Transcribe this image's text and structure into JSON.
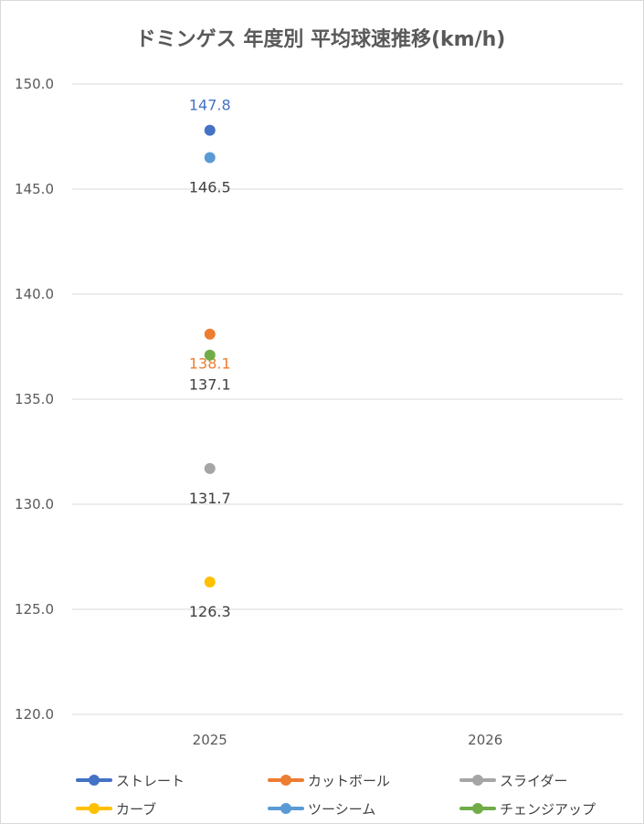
{
  "chart_data": {
    "type": "scatter",
    "title": "ドミンゲス 年度別 平均球速推移(km/h)",
    "categories": [
      "2025",
      "2026"
    ],
    "ylim": [
      120,
      150
    ],
    "y_ticks": [
      "120.0",
      "125.0",
      "130.0",
      "135.0",
      "140.0",
      "145.0",
      "150.0"
    ],
    "grid": true,
    "legend_position": "bottom",
    "series": [
      {
        "name": "ストレート",
        "color": "#4472c4",
        "values": [
          147.8,
          null
        ],
        "labels": [
          "147.8"
        ],
        "label_color": "#4472c4"
      },
      {
        "name": "カットボール",
        "color": "#ed7d31",
        "values": [
          138.1,
          null
        ],
        "labels": [
          "138.1"
        ],
        "label_color": "#ed7d31"
      },
      {
        "name": "スライダー",
        "color": "#a5a5a5",
        "values": [
          131.7,
          null
        ],
        "labels": [
          "131.7"
        ],
        "label_color": "#404040"
      },
      {
        "name": "カーブ",
        "color": "#ffc000",
        "values": [
          126.3,
          null
        ],
        "labels": [
          "126.3"
        ],
        "label_color": "#404040"
      },
      {
        "name": "ツーシーム",
        "color": "#5b9bd5",
        "values": [
          146.5,
          null
        ],
        "labels": [
          "146.5"
        ],
        "label_color": "#404040"
      },
      {
        "name": "チェンジアップ",
        "color": "#70ad47",
        "values": [
          137.1,
          null
        ],
        "labels": [
          "137.1"
        ],
        "label_color": "#404040"
      }
    ]
  }
}
